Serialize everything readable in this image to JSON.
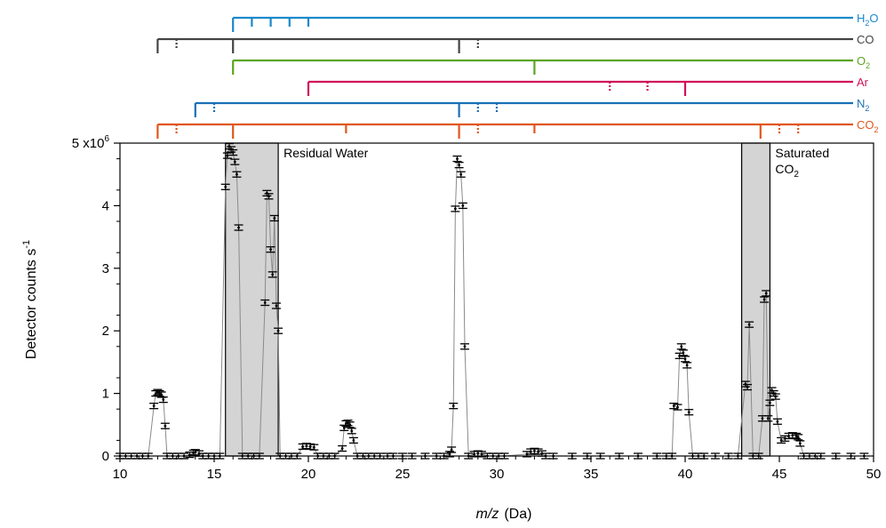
{
  "chart_data": {
    "type": "scatter",
    "xlabel": "m/z",
    "xlabel_unit": "(Da)",
    "ylabel": "Detector counts s",
    "ylabel_sup": "-1",
    "xlim": [
      10,
      50
    ],
    "ylim": [
      0,
      5000000
    ],
    "x_ticks": [
      10,
      15,
      20,
      25,
      30,
      35,
      40,
      45,
      50
    ],
    "y_ticks": [
      {
        "value": 0,
        "label": "0"
      },
      {
        "value": 1000000,
        "label": "1"
      },
      {
        "value": 2000000,
        "label": "2"
      },
      {
        "value": 3000000,
        "label": "3"
      },
      {
        "value": 4000000,
        "label": "4"
      },
      {
        "value": 5000000,
        "label": "5 x10",
        "sup": "6"
      }
    ],
    "regions": [
      {
        "name": "Residual Water",
        "x_start": 15.6,
        "x_end": 18.4,
        "y_top": 5000000,
        "label": [
          "Residual Water"
        ],
        "label_position": "right-of-region-top"
      },
      {
        "name": "Saturated CO2",
        "x_start": 43.0,
        "x_end": 44.5,
        "y_top": 5000000,
        "label": [
          "Saturated",
          "CO",
          "2"
        ],
        "label_position": "right-of-region-top"
      }
    ],
    "reference_lines": [
      {
        "label": "H",
        "sub": "2",
        "tail": "O",
        "color": "#1a88c9",
        "x_start": 16,
        "peaks": [
          {
            "x": 16,
            "style": "solid",
            "major": true
          },
          {
            "x": 17,
            "style": "solid"
          },
          {
            "x": 18,
            "style": "solid"
          },
          {
            "x": 19,
            "style": "solid"
          },
          {
            "x": 20,
            "style": "solid"
          }
        ]
      },
      {
        "label": "CO",
        "sub": "",
        "tail": "",
        "color": "#444444",
        "x_start": 12,
        "peaks": [
          {
            "x": 12,
            "style": "solid",
            "major": true
          },
          {
            "x": 13,
            "style": "dotted"
          },
          {
            "x": 16,
            "style": "solid",
            "major": true
          },
          {
            "x": 28,
            "style": "solid",
            "major": true
          },
          {
            "x": 29,
            "style": "dotted"
          }
        ]
      },
      {
        "label": "O",
        "sub": "2",
        "tail": "",
        "color": "#5ba51f",
        "x_start": 16,
        "peaks": [
          {
            "x": 16,
            "style": "solid",
            "major": true
          },
          {
            "x": 32,
            "style": "solid",
            "major": true
          }
        ]
      },
      {
        "label": "Ar",
        "sub": "",
        "tail": "",
        "color": "#d0105a",
        "x_start": 20,
        "peaks": [
          {
            "x": 20,
            "style": "solid",
            "major": true
          },
          {
            "x": 36,
            "style": "dotted"
          },
          {
            "x": 38,
            "style": "dotted"
          },
          {
            "x": 40,
            "style": "solid",
            "major": true
          }
        ]
      },
      {
        "label": "N",
        "sub": "2",
        "tail": "",
        "color": "#1a6fb5",
        "x_start": 14,
        "peaks": [
          {
            "x": 14,
            "style": "solid",
            "major": true
          },
          {
            "x": 15,
            "style": "dotted"
          },
          {
            "x": 28,
            "style": "solid",
            "major": true
          },
          {
            "x": 29,
            "style": "dotted"
          },
          {
            "x": 30,
            "style": "dotted"
          }
        ]
      },
      {
        "label": "CO",
        "sub": "2",
        "tail": "",
        "color": "#e0561b",
        "x_start": 12,
        "peaks": [
          {
            "x": 12,
            "style": "solid",
            "major": true
          },
          {
            "x": 13,
            "style": "dotted"
          },
          {
            "x": 16,
            "style": "solid",
            "major": true
          },
          {
            "x": 22,
            "style": "solid"
          },
          {
            "x": 28,
            "style": "solid",
            "major": true
          },
          {
            "x": 29,
            "style": "dotted"
          },
          {
            "x": 32,
            "style": "solid"
          },
          {
            "x": 44,
            "style": "solid",
            "major": true
          },
          {
            "x": 45,
            "style": "dotted"
          },
          {
            "x": 46,
            "style": "dotted"
          }
        ]
      }
    ],
    "series": [
      {
        "values_unit": "counts per second",
        "points": [
          [
            10.0,
            0
          ],
          [
            10.3,
            0
          ],
          [
            10.6,
            0
          ],
          [
            10.9,
            0
          ],
          [
            11.2,
            0
          ],
          [
            11.5,
            0
          ],
          [
            11.8,
            800000
          ],
          [
            11.9,
            1000000
          ],
          [
            12.0,
            1020000
          ],
          [
            12.1,
            1000000
          ],
          [
            12.2,
            980000
          ],
          [
            12.3,
            900000
          ],
          [
            12.4,
            480000
          ],
          [
            12.5,
            0
          ],
          [
            12.8,
            0
          ],
          [
            13.1,
            0
          ],
          [
            13.4,
            0
          ],
          [
            13.7,
            20000
          ],
          [
            13.9,
            50000
          ],
          [
            14.0,
            60000
          ],
          [
            14.2,
            40000
          ],
          [
            14.4,
            0
          ],
          [
            14.7,
            0
          ],
          [
            15.0,
            0
          ],
          [
            15.3,
            0
          ],
          [
            15.6,
            4300000
          ],
          [
            15.7,
            4800000
          ],
          [
            15.8,
            4950000
          ],
          [
            15.9,
            4900000
          ],
          [
            16.0,
            4850000
          ],
          [
            16.1,
            4700000
          ],
          [
            16.2,
            4500000
          ],
          [
            16.3,
            3650000
          ],
          [
            16.5,
            0
          ],
          [
            16.8,
            0
          ],
          [
            17.1,
            0
          ],
          [
            17.4,
            0
          ],
          [
            17.7,
            2450000
          ],
          [
            17.8,
            4200000
          ],
          [
            17.9,
            4150000
          ],
          [
            18.0,
            3300000
          ],
          [
            18.1,
            2900000
          ],
          [
            18.2,
            3800000
          ],
          [
            18.3,
            2400000
          ],
          [
            18.4,
            2000000
          ],
          [
            18.5,
            0
          ],
          [
            18.8,
            0
          ],
          [
            19.1,
            0
          ],
          [
            19.4,
            0
          ],
          [
            19.7,
            150000
          ],
          [
            19.9,
            160000
          ],
          [
            20.1,
            150000
          ],
          [
            20.3,
            140000
          ],
          [
            20.5,
            0
          ],
          [
            20.8,
            0
          ],
          [
            21.1,
            0
          ],
          [
            21.4,
            0
          ],
          [
            21.8,
            120000
          ],
          [
            21.9,
            450000
          ],
          [
            22.0,
            520000
          ],
          [
            22.1,
            530000
          ],
          [
            22.2,
            500000
          ],
          [
            22.3,
            400000
          ],
          [
            22.4,
            250000
          ],
          [
            22.6,
            0
          ],
          [
            22.9,
            0
          ],
          [
            23.2,
            0
          ],
          [
            23.5,
            0
          ],
          [
            23.8,
            0
          ],
          [
            24.2,
            0
          ],
          [
            24.5,
            0
          ],
          [
            25.0,
            0
          ],
          [
            25.5,
            0
          ],
          [
            26.2,
            0
          ],
          [
            26.8,
            0
          ],
          [
            27.2,
            0
          ],
          [
            27.5,
            30000
          ],
          [
            27.6,
            100000
          ],
          [
            27.7,
            800000
          ],
          [
            27.8,
            3950000
          ],
          [
            27.9,
            4750000
          ],
          [
            28.0,
            4650000
          ],
          [
            28.1,
            4500000
          ],
          [
            28.2,
            4000000
          ],
          [
            28.3,
            1750000
          ],
          [
            28.5,
            0
          ],
          [
            28.8,
            30000
          ],
          [
            29.0,
            40000
          ],
          [
            29.2,
            30000
          ],
          [
            29.5,
            0
          ],
          [
            29.8,
            0
          ],
          [
            30.1,
            0
          ],
          [
            30.4,
            0
          ],
          [
            31.6,
            30000
          ],
          [
            31.8,
            70000
          ],
          [
            32.0,
            80000
          ],
          [
            32.2,
            70000
          ],
          [
            32.4,
            40000
          ],
          [
            32.6,
            0
          ],
          [
            33.0,
            0
          ],
          [
            34.0,
            0
          ],
          [
            34.8,
            0
          ],
          [
            35.5,
            0
          ],
          [
            36.5,
            0
          ],
          [
            37.5,
            0
          ],
          [
            38.5,
            0
          ],
          [
            39.0,
            0
          ],
          [
            39.3,
            0
          ],
          [
            39.4,
            800000
          ],
          [
            39.6,
            780000
          ],
          [
            39.7,
            1600000
          ],
          [
            39.8,
            1750000
          ],
          [
            39.9,
            1650000
          ],
          [
            40.0,
            1550000
          ],
          [
            40.1,
            1450000
          ],
          [
            40.2,
            700000
          ],
          [
            40.4,
            0
          ],
          [
            40.7,
            0
          ],
          [
            41.0,
            0
          ],
          [
            41.6,
            0
          ],
          [
            42.3,
            0
          ],
          [
            42.8,
            0
          ],
          [
            43.2,
            1150000
          ],
          [
            43.3,
            1100000
          ],
          [
            43.4,
            2100000
          ],
          [
            43.6,
            0
          ],
          [
            43.9,
            0
          ],
          [
            44.1,
            600000
          ],
          [
            44.2,
            2500000
          ],
          [
            44.3,
            2600000
          ],
          [
            44.4,
            600000
          ],
          [
            44.5,
            850000
          ],
          [
            44.6,
            1050000
          ],
          [
            44.7,
            1000000
          ],
          [
            44.8,
            950000
          ],
          [
            44.9,
            550000
          ],
          [
            45.1,
            250000
          ],
          [
            45.3,
            280000
          ],
          [
            45.5,
            320000
          ],
          [
            45.7,
            330000
          ],
          [
            45.9,
            320000
          ],
          [
            46.0,
            300000
          ],
          [
            46.1,
            200000
          ],
          [
            46.3,
            0
          ],
          [
            46.6,
            0
          ],
          [
            46.9,
            0
          ],
          [
            47.2,
            0
          ],
          [
            48.0,
            0
          ],
          [
            48.8,
            0
          ],
          [
            49.5,
            0
          ]
        ]
      }
    ]
  }
}
